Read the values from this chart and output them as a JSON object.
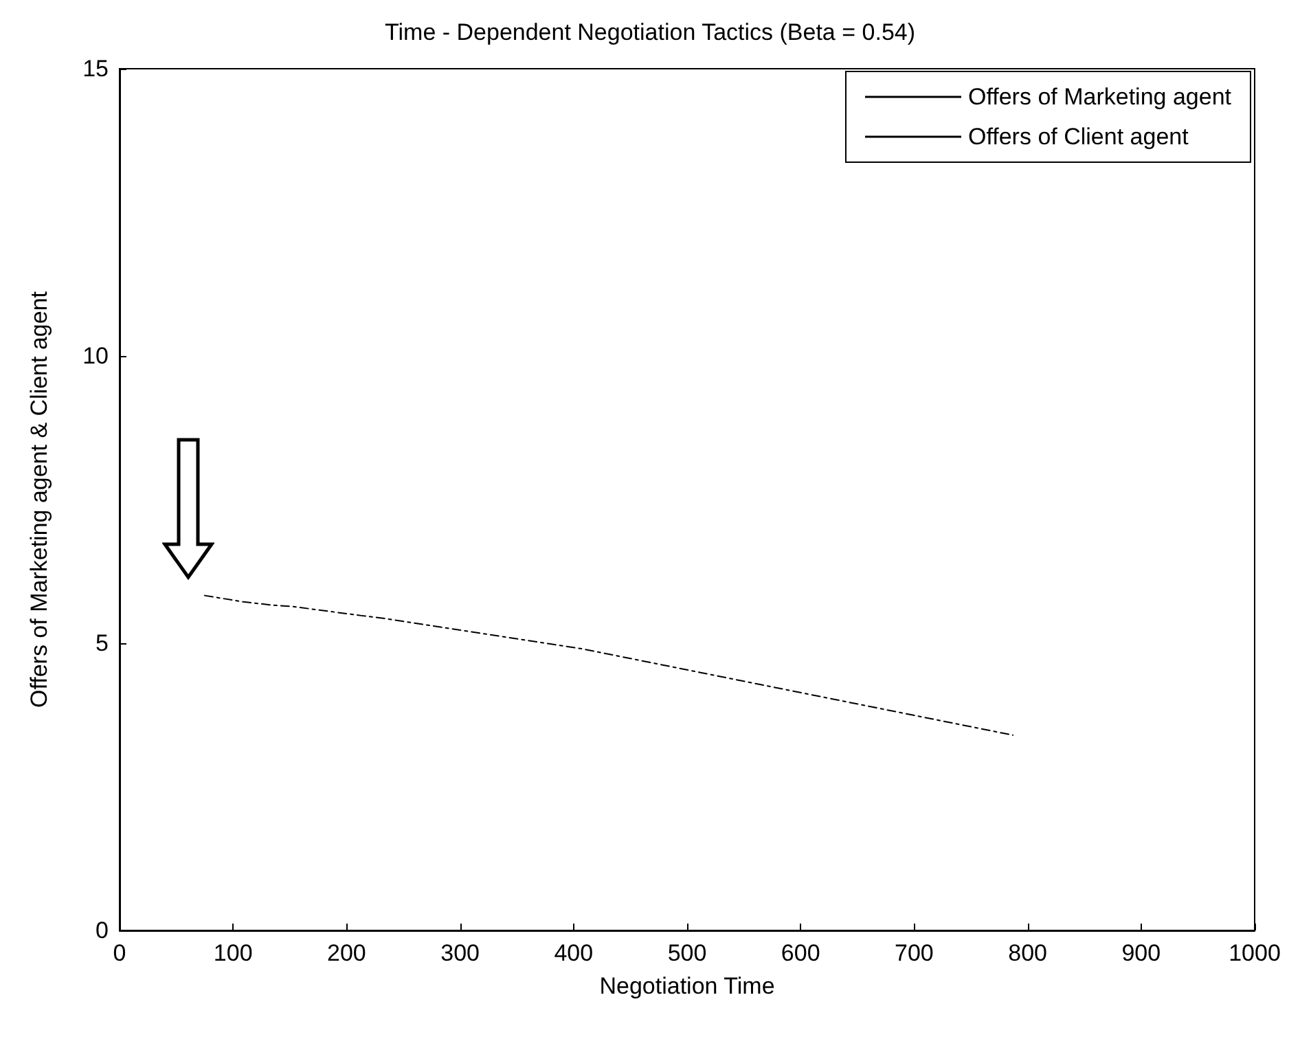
{
  "chart_data": {
    "type": "line",
    "title": "Time - Dependent Negotiation Tactics (Beta = 0.54)",
    "xlabel": "Negotiation Time",
    "ylabel": "Offers of Marketing agent & Client agent",
    "series": [
      {
        "name": "Offers of Marketing agent",
        "color": "#000000",
        "line_style": "dashed",
        "x": [
          75,
          109,
          136,
          152,
          213,
          230,
          408,
          787
        ],
        "values": [
          5.83,
          5.72,
          5.66,
          5.64,
          5.48,
          5.44,
          4.9,
          3.4
        ]
      },
      {
        "name": "Offers of Client agent",
        "color": "#000000",
        "line_style": "solid"
      }
    ],
    "xlim": [
      0,
      1000
    ],
    "xticks": [
      0,
      100,
      200,
      300,
      400,
      500,
      600,
      700,
      800,
      900,
      1000
    ],
    "ylim": [
      0,
      15
    ],
    "yticks": [
      0,
      5,
      10,
      15
    ],
    "legend": "top right",
    "marker": "none"
  }
}
